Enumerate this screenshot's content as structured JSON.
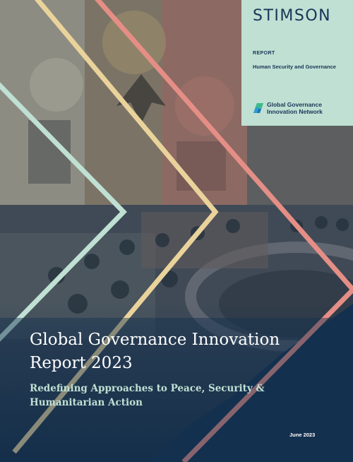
{
  "brand": {
    "logo": "STIMSON"
  },
  "label": {
    "type": "REPORT",
    "program": "Human Security and Governance",
    "network": "Global Governance Innovation Network"
  },
  "title": "Global Governance Innovation Report 2023",
  "subtitle": "Redefining Approaches to Peace, Security & Humanitarian Action",
  "date": "June 2023",
  "colors": {
    "background": "#14304f",
    "label_box": "#bfe0d3",
    "stripe_pink": "#e58e86",
    "stripe_yellow": "#ead39b",
    "stripe_mint": "#bfe0d3"
  },
  "icons": {
    "network": "network-logo-icon"
  }
}
